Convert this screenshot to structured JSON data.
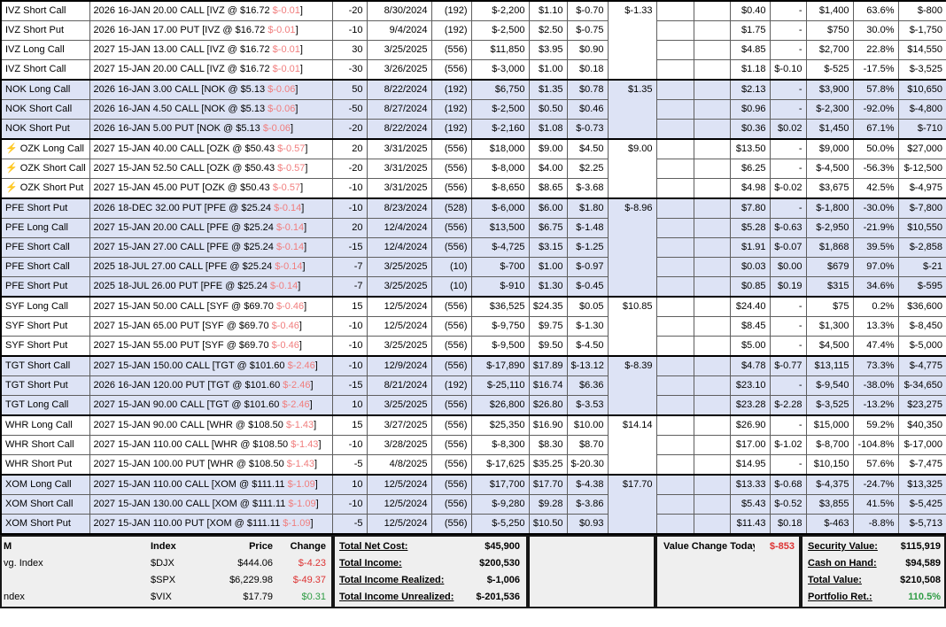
{
  "colors": {
    "positive": "#2e9c44",
    "negative": "#dd3333",
    "desc_negative": "#f07d7d",
    "row_shade": "#dde3f5"
  },
  "icons": {
    "bolt": "⚡"
  },
  "table": {
    "bracket_close": "]"
  },
  "positions": [
    {
      "name": "IVZ Short Call",
      "bolt": false,
      "desc_pre": "2026 16-JAN 20.00 CALL [IVZ @ $16.72 ",
      "desc_chg": "$-0.01",
      "qty": "-20",
      "date": "8/30/2024",
      "days": "(192)",
      "cost": "$-2,200",
      "paid": "$1.10",
      "day_chg": "$-0.70",
      "day_chg_c": "neg",
      "grp_chg": "$-1.33",
      "grp_rows": 4,
      "group_start": true,
      "shaded": false,
      "cur": "$0.40",
      "chg2": "-",
      "chg2_c": "dash",
      "gain": "$1,400",
      "gain_c": "pos-c",
      "pct": "63.6%",
      "pct_c": "pos-c",
      "val": "$-800"
    },
    {
      "name": "IVZ Short Put",
      "bolt": false,
      "desc_pre": "2026 16-JAN 17.00 PUT [IVZ @ $16.72 ",
      "desc_chg": "$-0.01",
      "qty": "-10",
      "date": "9/4/2024",
      "days": "(192)",
      "cost": "$-2,500",
      "paid": "$2.50",
      "day_chg": "$-0.75",
      "day_chg_c": "neg",
      "shaded": false,
      "cur": "$1.75",
      "chg2": "-",
      "chg2_c": "dash",
      "gain": "$750",
      "gain_c": "pos-c",
      "pct": "30.0%",
      "pct_c": "pos-c",
      "val": "$-1,750"
    },
    {
      "name": "IVZ Long Call",
      "bolt": false,
      "desc_pre": "2027 15-JAN 13.00 CALL [IVZ @ $16.72 ",
      "desc_chg": "$-0.01",
      "qty": "30",
      "date": "3/25/2025",
      "days": "(556)",
      "cost": "$11,850",
      "paid": "$3.95",
      "day_chg": "$0.90",
      "day_chg_c": "pos-c",
      "shaded": false,
      "cur": "$4.85",
      "chg2": "-",
      "chg2_c": "dash",
      "gain": "$2,700",
      "gain_c": "pos-c",
      "pct": "22.8%",
      "pct_c": "pos-c",
      "val": "$14,550"
    },
    {
      "name": "IVZ Short Call",
      "bolt": false,
      "desc_pre": "2027 15-JAN 20.00 CALL [IVZ @ $16.72 ",
      "desc_chg": "$-0.01",
      "qty": "-30",
      "date": "3/26/2025",
      "days": "(556)",
      "cost": "$-3,000",
      "paid": "$1.00",
      "day_chg": "$0.18",
      "day_chg_c": "pos-c",
      "shaded": false,
      "cur": "$1.18",
      "chg2": "$-0.10",
      "chg2_c": "neg",
      "gain": "$-525",
      "gain_c": "neg",
      "pct": "-17.5%",
      "pct_c": "neg",
      "val": "$-3,525"
    },
    {
      "name": "NOK Long Call",
      "bolt": false,
      "desc_pre": "2026 16-JAN 3.00 CALL [NOK @ $5.13 ",
      "desc_chg": "$-0.06",
      "qty": "50",
      "date": "8/22/2024",
      "days": "(192)",
      "cost": "$6,750",
      "paid": "$1.35",
      "day_chg": "$0.78",
      "day_chg_c": "pos-c",
      "grp_chg": "$1.35",
      "grp_rows": 3,
      "group_start": true,
      "shaded": true,
      "cur": "$2.13",
      "chg2": "-",
      "chg2_c": "dash",
      "gain": "$3,900",
      "gain_c": "pos-c",
      "pct": "57.8%",
      "pct_c": "pos-c",
      "val": "$10,650"
    },
    {
      "name": "NOK Short Call",
      "bolt": false,
      "desc_pre": "2026 16-JAN 4.50 CALL [NOK @ $5.13 ",
      "desc_chg": "$-0.06",
      "qty": "-50",
      "date": "8/27/2024",
      "days": "(192)",
      "cost": "$-2,500",
      "paid": "$0.50",
      "day_chg": "$0.46",
      "day_chg_c": "pos-c",
      "shaded": true,
      "cur": "$0.96",
      "chg2": "-",
      "chg2_c": "dash",
      "gain": "$-2,300",
      "gain_c": "neg",
      "pct": "-92.0%",
      "pct_c": "neg",
      "val": "$-4,800"
    },
    {
      "name": "NOK Short Put",
      "bolt": false,
      "desc_pre": "2026 16-JAN 5.00 PUT [NOK @ $5.13 ",
      "desc_chg": "$-0.06",
      "qty": "-20",
      "date": "8/22/2024",
      "days": "(192)",
      "cost": "$-2,160",
      "paid": "$1.08",
      "day_chg": "$-0.73",
      "day_chg_c": "neg",
      "shaded": true,
      "cur": "$0.36",
      "chg2": "$0.02",
      "chg2_c": "pos-c",
      "gain": "$1,450",
      "gain_c": "pos-c",
      "pct": "67.1%",
      "pct_c": "pos-c",
      "val": "$-710"
    },
    {
      "name": "OZK Long Call",
      "bolt": true,
      "desc_pre": "2027 15-JAN 40.00 CALL [OZK @ $50.43 ",
      "desc_chg": "$-0.57",
      "qty": "20",
      "date": "3/31/2025",
      "days": "(556)",
      "cost": "$18,000",
      "paid": "$9.00",
      "day_chg": "$4.50",
      "day_chg_c": "pos-c",
      "grp_chg": "$9.00",
      "grp_rows": 3,
      "group_start": true,
      "shaded": false,
      "cur": "$13.50",
      "chg2": "-",
      "chg2_c": "dash",
      "gain": "$9,000",
      "gain_c": "pos-c",
      "pct": "50.0%",
      "pct_c": "pos-c",
      "val": "$27,000"
    },
    {
      "name": "OZK Short Call",
      "bolt": true,
      "desc_pre": "2027 15-JAN 52.50 CALL [OZK @ $50.43 ",
      "desc_chg": "$-0.57",
      "qty": "-20",
      "date": "3/31/2025",
      "days": "(556)",
      "cost": "$-8,000",
      "paid": "$4.00",
      "day_chg": "$2.25",
      "day_chg_c": "pos-c",
      "shaded": false,
      "cur": "$6.25",
      "chg2": "-",
      "chg2_c": "dash",
      "gain": "$-4,500",
      "gain_c": "neg",
      "pct": "-56.3%",
      "pct_c": "neg",
      "val": "$-12,500"
    },
    {
      "name": "OZK Short Put",
      "bolt": true,
      "desc_pre": "2027 15-JAN 45.00 PUT [OZK @ $50.43 ",
      "desc_chg": "$-0.57",
      "qty": "-10",
      "date": "3/31/2025",
      "days": "(556)",
      "cost": "$-8,650",
      "paid": "$8.65",
      "day_chg": "$-3.68",
      "day_chg_c": "neg",
      "shaded": false,
      "cur": "$4.98",
      "chg2": "$-0.02",
      "chg2_c": "neg",
      "gain": "$3,675",
      "gain_c": "pos-c",
      "pct": "42.5%",
      "pct_c": "pos-c",
      "val": "$-4,975"
    },
    {
      "name": "PFE Short Put",
      "bolt": false,
      "desc_pre": "2026 18-DEC 32.00 PUT [PFE @ $25.24 ",
      "desc_chg": "$-0.14",
      "qty": "-10",
      "date": "8/23/2024",
      "days": "(528)",
      "cost": "$-6,000",
      "paid": "$6.00",
      "day_chg": "$1.80",
      "day_chg_c": "pos-c",
      "grp_chg": "$-8.96",
      "grp_rows": 5,
      "group_start": true,
      "shaded": true,
      "cur": "$7.80",
      "chg2": "-",
      "chg2_c": "dash",
      "gain": "$-1,800",
      "gain_c": "neg",
      "pct": "-30.0%",
      "pct_c": "neg",
      "val": "$-7,800"
    },
    {
      "name": "PFE Long Call",
      "bolt": false,
      "desc_pre": "2027 15-JAN 20.00 CALL [PFE @ $25.24 ",
      "desc_chg": "$-0.14",
      "qty": "20",
      "date": "12/4/2024",
      "days": "(556)",
      "cost": "$13,500",
      "paid": "$6.75",
      "day_chg": "$-1.48",
      "day_chg_c": "neg",
      "shaded": true,
      "cur": "$5.28",
      "chg2": "$-0.63",
      "chg2_c": "neg",
      "gain": "$-2,950",
      "gain_c": "neg",
      "pct": "-21.9%",
      "pct_c": "neg",
      "val": "$10,550"
    },
    {
      "name": "PFE Short Call",
      "bolt": false,
      "desc_pre": "2027 15-JAN 27.00 CALL [PFE @ $25.24 ",
      "desc_chg": "$-0.14",
      "qty": "-15",
      "date": "12/4/2024",
      "days": "(556)",
      "cost": "$-4,725",
      "paid": "$3.15",
      "day_chg": "$-1.25",
      "day_chg_c": "neg",
      "shaded": true,
      "cur": "$1.91",
      "chg2": "$-0.07",
      "chg2_c": "neg",
      "gain": "$1,868",
      "gain_c": "pos-c",
      "pct": "39.5%",
      "pct_c": "pos-c",
      "val": "$-2,858"
    },
    {
      "name": "PFE Short Call",
      "bolt": false,
      "desc_pre": "2025 18-JUL 27.00 CALL [PFE @ $25.24 ",
      "desc_chg": "$-0.14",
      "qty": "-7",
      "date": "3/25/2025",
      "days": "(10)",
      "cost": "$-700",
      "paid": "$1.00",
      "day_chg": "$-0.97",
      "day_chg_c": "neg",
      "shaded": true,
      "cur": "$0.03",
      "chg2": "$0.00",
      "chg2_c": "pos-c",
      "gain": "$679",
      "gain_c": "pos-c",
      "pct": "97.0%",
      "pct_c": "pos-c",
      "val": "$-21"
    },
    {
      "name": "PFE Short Put",
      "bolt": false,
      "desc_pre": "2025 18-JUL 26.00 PUT [PFE @ $25.24 ",
      "desc_chg": "$-0.14",
      "qty": "-7",
      "date": "3/25/2025",
      "days": "(10)",
      "cost": "$-910",
      "paid": "$1.30",
      "day_chg": "$-0.45",
      "day_chg_c": "neg",
      "shaded": true,
      "cur": "$0.85",
      "chg2": "$0.19",
      "chg2_c": "pos-c",
      "gain": "$315",
      "gain_c": "pos-c",
      "pct": "34.6%",
      "pct_c": "pos-c",
      "val": "$-595"
    },
    {
      "name": "SYF Long Call",
      "bolt": false,
      "desc_pre": "2027 15-JAN 50.00 CALL [SYF @ $69.70 ",
      "desc_chg": "$-0.46",
      "qty": "15",
      "date": "12/5/2024",
      "days": "(556)",
      "cost": "$36,525",
      "paid": "$24.35",
      "day_chg": "$0.05",
      "day_chg_c": "pos-c",
      "grp_chg": "$10.85",
      "grp_rows": 3,
      "group_start": true,
      "shaded": false,
      "cur": "$24.40",
      "chg2": "-",
      "chg2_c": "dash",
      "gain": "$75",
      "gain_c": "pos-c",
      "pct": "0.2%",
      "pct_c": "pos-c",
      "val": "$36,600"
    },
    {
      "name": "SYF Short Put",
      "bolt": false,
      "desc_pre": "2027 15-JAN 65.00 PUT [SYF @ $69.70 ",
      "desc_chg": "$-0.46",
      "qty": "-10",
      "date": "12/5/2024",
      "days": "(556)",
      "cost": "$-9,750",
      "paid": "$9.75",
      "day_chg": "$-1.30",
      "day_chg_c": "neg",
      "shaded": false,
      "cur": "$8.45",
      "chg2": "-",
      "chg2_c": "dash",
      "gain": "$1,300",
      "gain_c": "pos-c",
      "pct": "13.3%",
      "pct_c": "pos-c",
      "val": "$-8,450"
    },
    {
      "name": "SYF Short Put",
      "bolt": false,
      "desc_pre": "2027 15-JAN 55.00 PUT [SYF @ $69.70 ",
      "desc_chg": "$-0.46",
      "qty": "-10",
      "date": "3/25/2025",
      "days": "(556)",
      "cost": "$-9,500",
      "paid": "$9.50",
      "day_chg": "$-4.50",
      "day_chg_c": "neg",
      "shaded": false,
      "cur": "$5.00",
      "chg2": "-",
      "chg2_c": "dash",
      "gain": "$4,500",
      "gain_c": "pos-c",
      "pct": "47.4%",
      "pct_c": "pos-c",
      "val": "$-5,000"
    },
    {
      "name": "TGT Short Call",
      "bolt": false,
      "desc_pre": "2027 15-JAN 150.00 CALL [TGT @ $101.60 ",
      "desc_chg": "$-2.46",
      "qty": "-10",
      "date": "12/9/2024",
      "days": "(556)",
      "cost": "$-17,890",
      "paid": "$17.89",
      "day_chg": "$-13.12",
      "day_chg_c": "neg",
      "grp_chg": "$-8.39",
      "grp_rows": 3,
      "group_start": true,
      "shaded": true,
      "cur": "$4.78",
      "chg2": "$-0.77",
      "chg2_c": "neg",
      "gain": "$13,115",
      "gain_c": "pos-c",
      "pct": "73.3%",
      "pct_c": "pos-c",
      "val": "$-4,775"
    },
    {
      "name": "TGT Short Put",
      "bolt": false,
      "desc_pre": "2026 16-JAN 120.00 PUT [TGT @ $101.60 ",
      "desc_chg": "$-2.46",
      "qty": "-15",
      "date": "8/21/2024",
      "days": "(192)",
      "cost": "$-25,110",
      "paid": "$16.74",
      "day_chg": "$6.36",
      "day_chg_c": "pos-c",
      "shaded": true,
      "cur": "$23.10",
      "chg2": "-",
      "chg2_c": "dash",
      "gain": "$-9,540",
      "gain_c": "neg",
      "pct": "-38.0%",
      "pct_c": "neg",
      "val": "$-34,650"
    },
    {
      "name": "TGT Long Call",
      "bolt": false,
      "desc_pre": "2027 15-JAN 90.00 CALL [TGT @ $101.60 ",
      "desc_chg": "$-2.46",
      "qty": "10",
      "date": "3/25/2025",
      "days": "(556)",
      "cost": "$26,800",
      "paid": "$26.80",
      "day_chg": "$-3.53",
      "day_chg_c": "neg",
      "shaded": true,
      "cur": "$23.28",
      "chg2": "$-2.28",
      "chg2_c": "neg",
      "gain": "$-3,525",
      "gain_c": "neg",
      "pct": "-13.2%",
      "pct_c": "neg",
      "val": "$23,275"
    },
    {
      "name": "WHR Long Call",
      "bolt": false,
      "desc_pre": "2027 15-JAN 90.00 CALL [WHR @ $108.50 ",
      "desc_chg": "$-1.43",
      "qty": "15",
      "date": "3/27/2025",
      "days": "(556)",
      "cost": "$25,350",
      "paid": "$16.90",
      "day_chg": "$10.00",
      "day_chg_c": "pos-c",
      "grp_chg": "$14.14",
      "grp_rows": 3,
      "group_start": true,
      "shaded": false,
      "cur": "$26.90",
      "chg2": "-",
      "chg2_c": "dash",
      "gain": "$15,000",
      "gain_c": "pos-c",
      "pct": "59.2%",
      "pct_c": "pos-c",
      "val": "$40,350"
    },
    {
      "name": "WHR Short Call",
      "bolt": false,
      "desc_pre": "2027 15-JAN 110.00 CALL [WHR @ $108.50 ",
      "desc_chg": "$-1.43",
      "qty": "-10",
      "date": "3/28/2025",
      "days": "(556)",
      "cost": "$-8,300",
      "paid": "$8.30",
      "day_chg": "$8.70",
      "day_chg_c": "pos-c",
      "shaded": false,
      "cur": "$17.00",
      "chg2": "$-1.02",
      "chg2_c": "neg",
      "gain": "$-8,700",
      "gain_c": "neg",
      "pct": "-104.8%",
      "pct_c": "neg",
      "val": "$-17,000"
    },
    {
      "name": "WHR Short Put",
      "bolt": false,
      "desc_pre": "2027 15-JAN 100.00 PUT [WHR @ $108.50 ",
      "desc_chg": "$-1.43",
      "qty": "-5",
      "date": "4/8/2025",
      "days": "(556)",
      "cost": "$-17,625",
      "paid": "$35.25",
      "day_chg": "$-20.30",
      "day_chg_c": "neg",
      "shaded": false,
      "cur": "$14.95",
      "chg2": "-",
      "chg2_c": "dash",
      "gain": "$10,150",
      "gain_c": "pos-c",
      "pct": "57.6%",
      "pct_c": "pos-c",
      "val": "$-7,475"
    },
    {
      "name": "XOM Long Call",
      "bolt": false,
      "desc_pre": "2027 15-JAN 110.00 CALL [XOM @ $111.11 ",
      "desc_chg": "$-1.09",
      "qty": "10",
      "date": "12/5/2024",
      "days": "(556)",
      "cost": "$17,700",
      "paid": "$17.70",
      "day_chg": "$-4.38",
      "day_chg_c": "neg",
      "grp_chg": "$17.70",
      "grp_rows": 3,
      "group_start": true,
      "shaded": true,
      "cur": "$13.33",
      "chg2": "$-0.68",
      "chg2_c": "neg",
      "gain": "$-4,375",
      "gain_c": "neg",
      "pct": "-24.7%",
      "pct_c": "neg",
      "val": "$13,325"
    },
    {
      "name": "XOM Short Call",
      "bolt": false,
      "desc_pre": "2027 15-JAN 130.00 CALL [XOM @ $111.11 ",
      "desc_chg": "$-1.09",
      "qty": "-10",
      "date": "12/5/2024",
      "days": "(556)",
      "cost": "$-9,280",
      "paid": "$9.28",
      "day_chg": "$-3.86",
      "day_chg_c": "neg",
      "shaded": true,
      "cur": "$5.43",
      "chg2": "$-0.52",
      "chg2_c": "neg",
      "gain": "$3,855",
      "gain_c": "pos-c",
      "pct": "41.5%",
      "pct_c": "pos-c",
      "val": "$-5,425"
    },
    {
      "name": "XOM Short Put",
      "bolt": false,
      "desc_pre": "2027 15-JAN 110.00 PUT [XOM @ $111.11 ",
      "desc_chg": "$-1.09",
      "qty": "-5",
      "date": "12/5/2024",
      "days": "(556)",
      "cost": "$-5,250",
      "paid": "$10.50",
      "day_chg": "$0.93",
      "day_chg_c": "pos-c",
      "shaded": true,
      "cur": "$11.43",
      "chg2": "$0.18",
      "chg2_c": "pos-c",
      "gain": "$-463",
      "gain_c": "neg",
      "pct": "-8.8%",
      "pct_c": "neg",
      "val": "$-5,713"
    }
  ],
  "summary": {
    "indexes": {
      "headers": {
        "label": "M",
        "index": "Index",
        "price": "Price",
        "change": "Change"
      },
      "rows": [
        {
          "label": "vg. Index",
          "index": "$DJX",
          "price": "$444.06",
          "change": "$-4.23",
          "dir": "neg"
        },
        {
          "label": "",
          "index": "$SPX",
          "price": "$6,229.98",
          "change": "$-49.37",
          "dir": "neg"
        },
        {
          "label": "ndex",
          "index": "$VIX",
          "price": "$17.79",
          "change": "$0.31",
          "dir": "pos-c"
        }
      ]
    },
    "totals": [
      {
        "label": "Total Net Cost:",
        "value": "$45,900"
      },
      {
        "label": "Total Income:",
        "value": "$200,530"
      },
      {
        "label": "Total Income Realized:",
        "value": "$-1,006"
      },
      {
        "label": "Total Income Unrealized:",
        "value": "$-201,536"
      }
    ],
    "value_change": {
      "label": "Value Change Today:",
      "value": "$-853",
      "dir": "neg"
    },
    "account": [
      {
        "label": "Security Value:",
        "value": "$115,919",
        "dir": ""
      },
      {
        "label": "Cash on Hand:",
        "value": "$94,589",
        "dir": ""
      },
      {
        "label": "Total Value:",
        "value": "$210,508",
        "dir": ""
      },
      {
        "label": "Portfolio Ret.:",
        "value": "110.5%",
        "dir": "pos-c"
      }
    ]
  }
}
